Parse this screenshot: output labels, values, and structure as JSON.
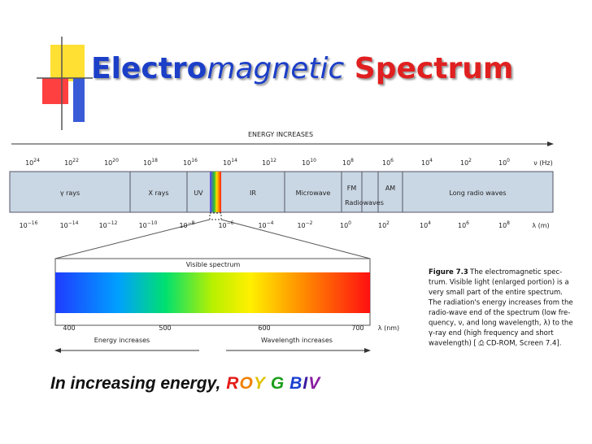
{
  "title": {
    "part1": "Electro",
    "part2": "magnetic",
    "part3": "Spectrum"
  },
  "figure": {
    "energy_arrow": "ENERGY INCREASES",
    "frequency_labels": [
      {
        "base": "10",
        "exp": "24"
      },
      {
        "base": "10",
        "exp": "22"
      },
      {
        "base": "10",
        "exp": "20"
      },
      {
        "base": "10",
        "exp": "18"
      },
      {
        "base": "10",
        "exp": "16"
      },
      {
        "base": "10",
        "exp": "14"
      },
      {
        "base": "10",
        "exp": "12"
      },
      {
        "base": "10",
        "exp": "10"
      },
      {
        "base": "10",
        "exp": "8"
      },
      {
        "base": "10",
        "exp": "6"
      },
      {
        "base": "10",
        "exp": "4"
      },
      {
        "base": "10",
        "exp": "2"
      },
      {
        "base": "10",
        "exp": "0"
      }
    ],
    "frequency_unit": "ν (Hz)",
    "bands": [
      "γ rays",
      "X rays",
      "UV",
      "IR",
      "Microwave",
      "FM",
      "AM",
      "Long radio waves"
    ],
    "radiowaves": "Radiowaves",
    "wavelength_labels": [
      {
        "base": "10",
        "exp": "−16"
      },
      {
        "base": "10",
        "exp": "−14"
      },
      {
        "base": "10",
        "exp": "−12"
      },
      {
        "base": "10",
        "exp": "−10"
      },
      {
        "base": "10",
        "exp": "−8"
      },
      {
        "base": "10",
        "exp": "−6"
      },
      {
        "base": "10",
        "exp": "−4"
      },
      {
        "base": "10",
        "exp": "−2"
      },
      {
        "base": "10",
        "exp": "0"
      },
      {
        "base": "10",
        "exp": "2"
      },
      {
        "base": "10",
        "exp": "4"
      },
      {
        "base": "10",
        "exp": "6"
      },
      {
        "base": "10",
        "exp": "8"
      }
    ],
    "wavelength_unit": "λ (m)",
    "visible_title": "Visible spectrum",
    "nm_labels": [
      "400",
      "500",
      "600",
      "700"
    ],
    "nm_unit": "λ (nm)",
    "energy_increases": "Energy increases",
    "wavelength_increases": "Wavelength increases"
  },
  "caption": {
    "label": "Figure 7.3",
    "lines": [
      "The electromagnetic spec-",
      "trum. Visible light (enlarged portion) is a",
      "very small part of the entire spectrum.",
      "The radiation's energy increases from the",
      "radio-wave end of the spectrum (low fre-",
      "quency, ν, and long wavelength, λ) to the",
      "γ-ray end (high frequency and short",
      "wavelength) [ ⎙ CD-ROM, Screen 7.4]."
    ]
  },
  "footer": {
    "text": "In increasing energy,",
    "groups": [
      [
        {
          "letter": "R",
          "color": "#e41b17"
        },
        {
          "letter": "O",
          "color": "#f08000"
        },
        {
          "letter": "Y",
          "color": "#e0c000"
        }
      ],
      [
        {
          "letter": "G",
          "color": "#1a9e1a"
        }
      ],
      [
        {
          "letter": "B",
          "color": "#1a3fd0"
        },
        {
          "letter": "I",
          "color": "#3a1a9e"
        },
        {
          "letter": "V",
          "color": "#8a1aa0"
        }
      ]
    ]
  }
}
